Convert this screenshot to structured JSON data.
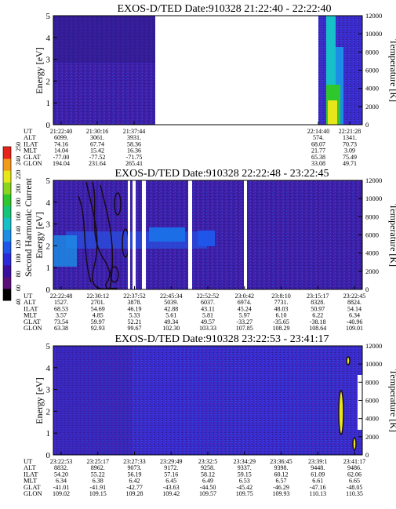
{
  "figure": {
    "colorbar": {
      "label": "Second Harmonic Current",
      "ticks": [
        "40",
        "60",
        "80",
        "100",
        "120",
        "140",
        "160",
        "180",
        "200",
        "220",
        "240",
        "250"
      ],
      "colors": [
        "#000000",
        "#5a0f7a",
        "#3b0f9e",
        "#2a2ad8",
        "#1f55e8",
        "#1c8ee6",
        "#17bfc9",
        "#17c47a",
        "#2ec82d",
        "#8bd41f",
        "#e6e61a",
        "#f29a1a",
        "#e8231a"
      ]
    },
    "row_labels": [
      "UT",
      "ALT",
      "ILAT",
      "MLT",
      "GLAT",
      "GLON"
    ]
  },
  "chart_data": [
    {
      "type": "heatmap",
      "title": "EXOS-D/TED   Date:910328   21:22:40 - 22:22:40",
      "ylabel": "Energy [eV]",
      "y2label": "Temperature [K]",
      "ylim": [
        0,
        5
      ],
      "y2lim": [
        0,
        12000
      ],
      "yticks": [
        "0",
        "1",
        "2",
        "3",
        "4",
        "5"
      ],
      "y2ticks": [
        "0",
        "2000",
        "4000",
        "6000",
        "8000",
        "10000",
        "12000"
      ],
      "x": [
        "21:22:40",
        "21:30:16",
        "21:37:44",
        "22:14:40",
        "22:21:28"
      ],
      "table": {
        "UT": [
          "21:22:40",
          "21:30:16",
          "21:37:44",
          "22:14:40",
          "22:21:28"
        ],
        "ALT": [
          "6099.",
          "3061.",
          "3931.",
          "574.",
          "1341."
        ],
        "ILAT": [
          "74.16",
          "67.74",
          "58.36",
          "68.07",
          "70.73"
        ],
        "MLT": [
          "14.04",
          "15.42",
          "16.36",
          "21.77",
          "3.09"
        ],
        "GLAT": [
          "-77.00",
          "-77.52",
          "-71.75",
          "65.38",
          "75.49"
        ],
        "GLON": [
          "194.04",
          "231.64",
          "265.41",
          "33.08",
          "49.71"
        ]
      },
      "data_gap": [
        "21:37:44",
        "22:14:40"
      ],
      "background_value": 100
    },
    {
      "type": "heatmap",
      "title": "EXOS-D/TED   Date:910328   22:22:48 - 23:22:45",
      "ylabel": "Energy [eV]",
      "y2label": "Temperature [K]",
      "ylim": [
        0,
        5
      ],
      "y2lim": [
        0,
        12000
      ],
      "yticks": [
        "0",
        "1",
        "2",
        "3",
        "4",
        "5"
      ],
      "y2ticks": [
        "0",
        "2000",
        "4000",
        "6000",
        "8000",
        "10000",
        "12000"
      ],
      "x": [
        "22:22:48",
        "22:30:12",
        "22:37:52",
        "22:45:34",
        "22:52:52",
        "23:0:42",
        "23:8:10",
        "23:15:17",
        "23:22:45"
      ],
      "table": {
        "UT": [
          "22:22:48",
          "22:30:12",
          "22:37:52",
          "22:45:34",
          "22:52:52",
          "23:0:42",
          "23:8:10",
          "23:15:17",
          "23:22:45"
        ],
        "ALT": [
          "1527.",
          "2701.",
          "3878.",
          "5039.",
          "6037.",
          "6974.",
          "7731.",
          "8328.",
          "8824."
        ],
        "ILAT": [
          "68.53",
          "54.69",
          "46.19",
          "42.88",
          "43.11",
          "45.24",
          "48.03",
          "50.97",
          "54.14"
        ],
        "MLT": [
          "3.57",
          "4.85",
          "5.33",
          "5.61",
          "5.81",
          "5.97",
          "6.10",
          "6.22",
          "6.34"
        ],
        "GLAT": [
          "73.54",
          "59.97",
          "52.21",
          "49.34",
          "49.57",
          "-33.27",
          "-35.65",
          "-38.18",
          "-40.96"
        ],
        "GLON": [
          "63.38",
          "92.93",
          "99.67",
          "102.30",
          "103.33",
          "107.85",
          "108.29",
          "108.64",
          "109.01"
        ]
      },
      "background_value": 100
    },
    {
      "type": "heatmap",
      "title": "EXOS-D/TED   Date:910328   23:22:53 - 23:41:17",
      "ylabel": "Energy [eV]",
      "y2label": "Temperature [K]",
      "ylim": [
        0,
        5
      ],
      "y2lim": [
        0,
        12000
      ],
      "yticks": [
        "0",
        "1",
        "2",
        "3",
        "4",
        "5"
      ],
      "y2ticks": [
        "0",
        "2000",
        "4000",
        "6000",
        "8000",
        "10000",
        "12000"
      ],
      "x": [
        "23:22:53",
        "23:25:17",
        "23:27:33",
        "23:29:49",
        "23:32:5",
        "23:34:29",
        "23:36:45",
        "23:39:1",
        "23:41:17"
      ],
      "table": {
        "UT": [
          "23:22:53",
          "23:25:17",
          "23:27:33",
          "23:29:49",
          "23:32:5",
          "23:34:29",
          "23:36:45",
          "23:39:1",
          "23:41:17"
        ],
        "ALT": [
          "8832.",
          "8962.",
          "9073.",
          "9172.",
          "9258.",
          "9337.",
          "9398.",
          "9448.",
          "9486."
        ],
        "ILAT": [
          "54.20",
          "55.22",
          "56.19",
          "57.16",
          "58.12",
          "59.15",
          "60.12",
          "61.09",
          "62.06"
        ],
        "MLT": [
          "6.34",
          "6.38",
          "6.42",
          "6.45",
          "6.49",
          "6.53",
          "6.57",
          "6.61",
          "6.65"
        ],
        "GLAT": [
          "-41.01",
          "-41.91",
          "-42.77",
          "-43.63",
          "-44.50",
          "-45.42",
          "-46.29",
          "-47.16",
          "-48.05"
        ],
        "GLON": [
          "109.02",
          "109.15",
          "109.28",
          "109.42",
          "109.57",
          "109.75",
          "109.93",
          "110.13",
          "110.35"
        ]
      },
      "background_value": 100
    }
  ]
}
